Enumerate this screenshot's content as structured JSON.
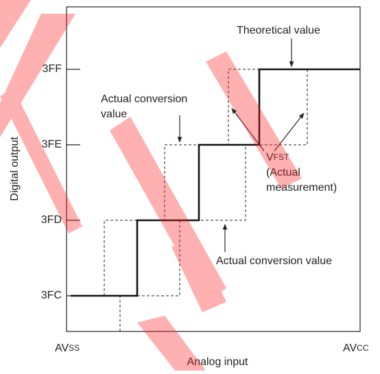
{
  "y_axis": {
    "label": "Digital output",
    "ticks": [
      "3FF",
      "3FE",
      "3FD",
      "3FC"
    ]
  },
  "x_axis": {
    "label": "Analog input",
    "left": {
      "main": "AV",
      "sub": "SS"
    },
    "right": {
      "main": "AV",
      "sub": "CC"
    }
  },
  "annotations": {
    "theoretical": "Theoretical value",
    "actual_top": [
      "Actual conversion",
      "value"
    ],
    "vfst": {
      "main": "V",
      "sub": "FST",
      "lines": [
        "(Actual",
        "measurement)"
      ]
    },
    "actual_bottom": "Actual conversion value"
  }
}
